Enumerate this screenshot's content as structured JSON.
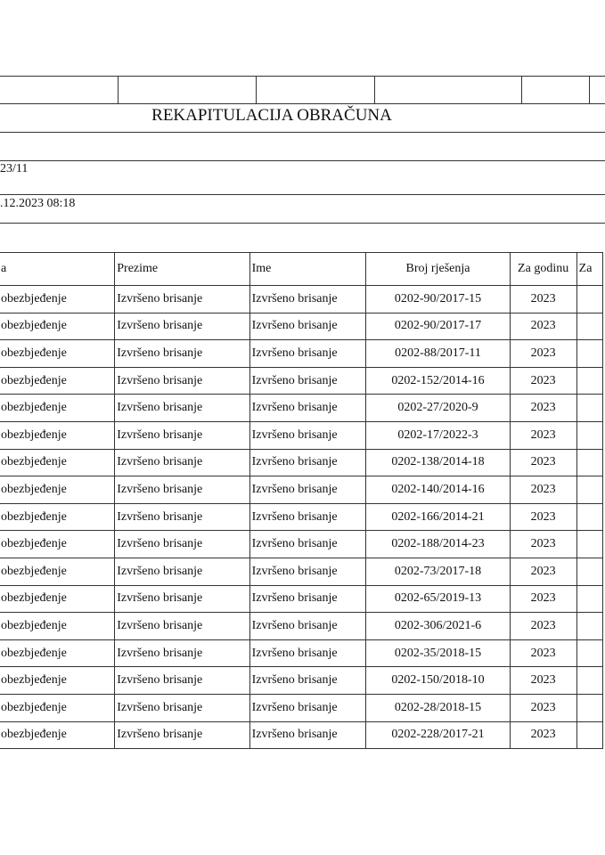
{
  "title": "REKAPITULACIJA OBRAČUNA",
  "period": "23/11",
  "datetime": ".12.2023 08:18",
  "table": {
    "headers": [
      "a",
      "Prezime",
      "Ime",
      "Broj rješenja",
      "Za godinu",
      "Za"
    ],
    "rows": [
      [
        "obezbjeđenje",
        "Izvršeno brisanje",
        "Izvršeno brisanje",
        "0202-90/2017-15",
        "2023",
        ""
      ],
      [
        "obezbjeđenje",
        "Izvršeno brisanje",
        "Izvršeno brisanje",
        "0202-90/2017-17",
        "2023",
        ""
      ],
      [
        "obezbjeđenje",
        "Izvršeno brisanje",
        "Izvršeno brisanje",
        "0202-88/2017-11",
        "2023",
        ""
      ],
      [
        "obezbjeđenje",
        "Izvršeno brisanje",
        "Izvršeno brisanje",
        "0202-152/2014-16",
        "2023",
        ""
      ],
      [
        "obezbjeđenje",
        "Izvršeno brisanje",
        "Izvršeno brisanje",
        "0202-27/2020-9",
        "2023",
        ""
      ],
      [
        "obezbjeđenje",
        "Izvršeno brisanje",
        "Izvršeno brisanje",
        "0202-17/2022-3",
        "2023",
        ""
      ],
      [
        "obezbjeđenje",
        "Izvršeno brisanje",
        "Izvršeno brisanje",
        "0202-138/2014-18",
        "2023",
        ""
      ],
      [
        "obezbjeđenje",
        "Izvršeno brisanje",
        "Izvršeno brisanje",
        "0202-140/2014-16",
        "2023",
        ""
      ],
      [
        "obezbjeđenje",
        "Izvršeno brisanje",
        "Izvršeno brisanje",
        "0202-166/2014-21",
        "2023",
        ""
      ],
      [
        "obezbjeđenje",
        "Izvršeno brisanje",
        "Izvršeno brisanje",
        "0202-188/2014-23",
        "2023",
        ""
      ],
      [
        "obezbjeđenje",
        "Izvršeno brisanje",
        "Izvršeno brisanje",
        "0202-73/2017-18",
        "2023",
        ""
      ],
      [
        "obezbjeđenje",
        "Izvršeno brisanje",
        "Izvršeno brisanje",
        "0202-65/2019-13",
        "2023",
        ""
      ],
      [
        "obezbjeđenje",
        "Izvršeno brisanje",
        "Izvršeno brisanje",
        "0202-306/2021-6",
        "2023",
        ""
      ],
      [
        "obezbjeđenje",
        "Izvršeno brisanje",
        "Izvršeno brisanje",
        "0202-35/2018-15",
        "2023",
        ""
      ],
      [
        "obezbjeđenje",
        "Izvršeno brisanje",
        "Izvršeno brisanje",
        "0202-150/2018-10",
        "2023",
        ""
      ],
      [
        "obezbjeđenje",
        "Izvršeno brisanje",
        "Izvršeno brisanje",
        "0202-28/2018-15",
        "2023",
        ""
      ],
      [
        "obezbjeđenje",
        "Izvršeno brisanje",
        "Izvršeno brisanje",
        "0202-228/2017-21",
        "2023",
        ""
      ]
    ]
  }
}
